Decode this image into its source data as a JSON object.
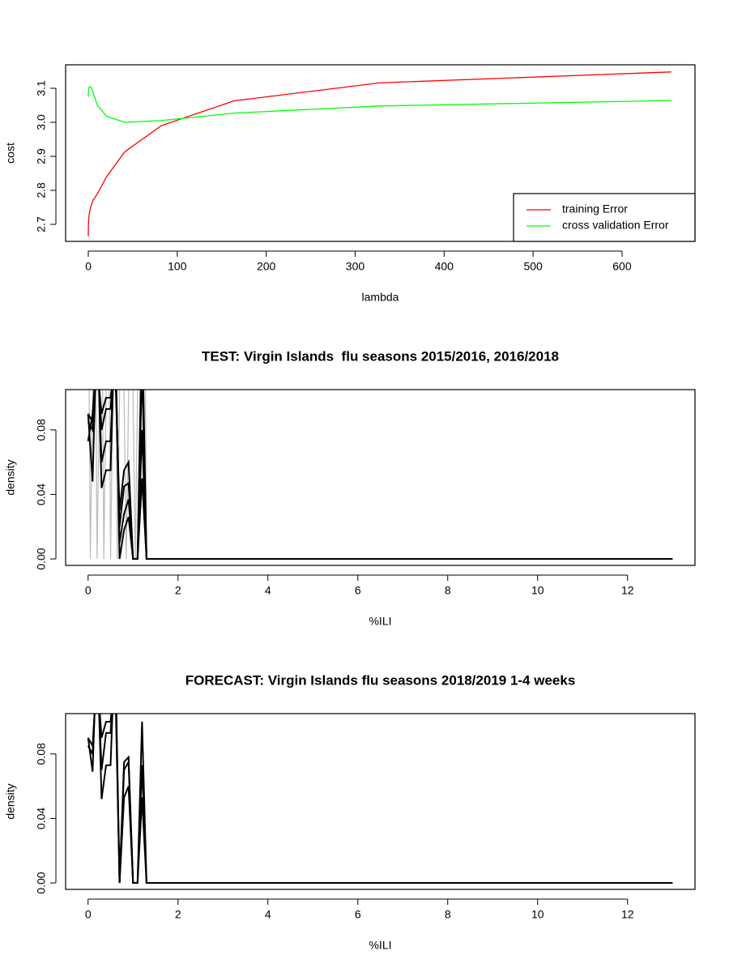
{
  "chart_data": [
    {
      "type": "line",
      "xlabel": "lambda",
      "ylabel": "cost",
      "x": [
        0,
        0.01,
        0.02,
        0.04,
        0.08,
        0.16,
        0.32,
        0.64,
        1.28,
        2.56,
        5.12,
        10.24,
        20.48,
        40.96,
        81.92,
        163.84,
        327.68,
        655.36
      ],
      "series": [
        {
          "name": "training Error",
          "color": "#ff0000",
          "values": [
            2.665,
            2.67,
            2.675,
            2.68,
            2.69,
            2.7,
            2.71,
            2.72,
            2.735,
            2.75,
            2.77,
            2.79,
            2.84,
            2.913,
            2.99,
            3.063,
            3.116,
            3.148
          ]
        },
        {
          "name": "cross validation Error",
          "color": "#00ff00",
          "values": [
            3.075,
            3.078,
            3.08,
            3.083,
            3.086,
            3.09,
            3.095,
            3.1,
            3.104,
            3.105,
            3.09,
            3.05,
            3.018,
            3.0,
            3.005,
            3.027,
            3.048,
            3.064
          ]
        }
      ],
      "xlim": [
        -25.5,
        682
      ],
      "ylim": [
        2.65,
        3.169
      ],
      "xticks": [
        0,
        100,
        200,
        300,
        400,
        500,
        600
      ],
      "yticks": [
        2.7,
        2.8,
        2.9,
        {
          "value": 3,
          "label": "3.0"
        },
        3.1
      ],
      "legend": "bottomright"
    },
    {
      "type": "line",
      "title": "TEST: Virgin Islands  flu seasons 2015/2016, 2016/2018",
      "xlabel": "%ILI",
      "ylabel": "density",
      "x": [
        0,
        0.1,
        0.2,
        0.3,
        0.4,
        0.5,
        0.6,
        0.7,
        0.8,
        0.9,
        1.0,
        1.1,
        1.2,
        1.3,
        13
      ],
      "series": [
        {
          "color": "#bebebe",
          "x": [
            0,
            0.05,
            0.15,
            0.2,
            0.3,
            0.35,
            0.45,
            0.5,
            0.6,
            0.65,
            0.75,
            0.85,
            0.95,
            1.05,
            1.15,
            1.25,
            1.3
          ],
          "values": [
            0.2,
            0,
            0.2,
            0,
            0.2,
            0,
            0.2,
            0,
            0.2,
            0,
            0.2,
            0,
            0.2,
            0,
            0.2,
            0.2,
            0
          ]
        },
        {
          "color": "#000000",
          "values": [
            0.09,
            0.048,
            0.15,
            0.044,
            0.055,
            0.055,
            0.15,
            0,
            0.018,
            0.026,
            0,
            0,
            0.05,
            0,
            0
          ]
        },
        {
          "color": "#000000",
          "values": [
            0.085,
            0.08,
            0.14,
            0.06,
            0.073,
            0.073,
            0.14,
            0.01,
            0.028,
            0.037,
            0,
            0,
            0.08,
            0,
            0
          ]
        },
        {
          "color": "#000000",
          "values": [
            0.073,
            0.09,
            0.13,
            0.08,
            0.093,
            0.093,
            0.13,
            0.02,
            0.045,
            0.047,
            0,
            0,
            0.12,
            0,
            0
          ]
        },
        {
          "color": "#000000",
          "values": [
            0.09,
            0.085,
            0.12,
            0.09,
            0.1,
            0.1,
            0.12,
            0.03,
            0.055,
            0.06,
            0,
            0,
            0.15,
            0,
            0
          ]
        }
      ],
      "xlim": [
        -0.5,
        13.5
      ],
      "ylim": [
        -0.004,
        0.105
      ],
      "xticks": [
        0,
        2,
        4,
        6,
        8,
        10,
        12
      ],
      "yticks": [
        {
          "value": 0,
          "label": "0.00"
        },
        0.04,
        0.08
      ]
    },
    {
      "type": "line",
      "title": "FORECAST: Virgin Islands flu seasons 2018/2019 1-4 weeks",
      "xlabel": "%ILI",
      "ylabel": "density",
      "x": [
        0,
        0.1,
        0.2,
        0.3,
        0.4,
        0.5,
        0.6,
        0.7,
        0.8,
        0.9,
        1.0,
        1.1,
        1.2,
        1.3,
        13
      ],
      "series": [
        {
          "color": "#000000",
          "values": [
            0.09,
            0.069,
            0.15,
            0.052,
            0.073,
            0.073,
            0.15,
            0,
            0.053,
            0.06,
            0,
            0,
            0.053,
            0,
            0
          ]
        },
        {
          "color": "#000000",
          "values": [
            0.085,
            0.08,
            0.14,
            0.07,
            0.093,
            0.093,
            0.14,
            0,
            0.07,
            0.075,
            0,
            0,
            0.073,
            0,
            0
          ]
        },
        {
          "color": "#000000",
          "values": [
            0.09,
            0.085,
            0.13,
            0.09,
            0.1,
            0.1,
            0.13,
            0,
            0.075,
            0.078,
            0,
            0,
            0.1,
            0,
            0
          ]
        }
      ],
      "xlim": [
        -0.5,
        13.5
      ],
      "ylim": [
        -0.004,
        0.105
      ],
      "xticks": [
        0,
        2,
        4,
        6,
        8,
        10,
        12
      ],
      "yticks": [
        {
          "value": 0,
          "label": "0.00"
        },
        0.04,
        0.08
      ]
    }
  ]
}
